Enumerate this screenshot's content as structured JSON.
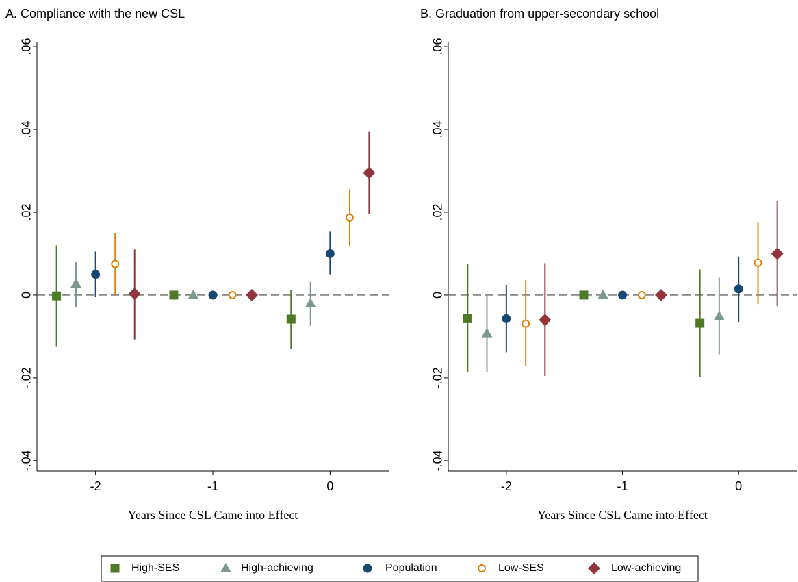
{
  "chart_data": [
    {
      "type": "errorbar",
      "title": "A. Compliance with the new CSL",
      "x_label": "Years Since CSL Came into Effect",
      "xlim": [
        -2.5,
        0.5
      ],
      "xticks": [
        -2,
        -1,
        0
      ],
      "ylim": [
        -0.0425,
        0.061
      ],
      "yticks": [
        {
          "value": -0.04,
          "label": "-.04"
        },
        {
          "value": -0.02,
          "label": "-.02"
        },
        0,
        {
          "value": 0.02,
          "label": ".02"
        },
        {
          "value": 0.04,
          "label": ".04"
        },
        {
          "value": 0.06,
          "label": ".06"
        }
      ],
      "grid": false,
      "reference_line": 0,
      "legend": "bottom",
      "series": [
        {
          "name": "High-SES",
          "color": "#4e7a28",
          "marker": "square",
          "x": [
            -2.333,
            -1.333,
            -0.333
          ],
          "values": [
            -0.0002,
            0,
            -0.0058
          ],
          "lower": [
            -0.0125,
            null,
            -0.013
          ],
          "upper": [
            0.012,
            null,
            0.0013
          ]
        },
        {
          "name": "High-achieving",
          "color": "#7b9a8c",
          "marker": "triangle",
          "x": [
            -2.167,
            -1.167,
            -0.167
          ],
          "values": [
            0.0028,
            0,
            -0.002
          ],
          "lower": [
            -0.003,
            null,
            -0.0075
          ],
          "upper": [
            0.008,
            null,
            0.0032
          ]
        },
        {
          "name": "Population",
          "color": "#1a476f",
          "marker": "circle",
          "x": [
            -2,
            -1,
            0
          ],
          "values": [
            0.005,
            0,
            0.01
          ],
          "lower": [
            -0.0005,
            null,
            0.005
          ],
          "upper": [
            0.0105,
            null,
            0.0153
          ]
        },
        {
          "name": "Low-SES",
          "color": "#e37e00",
          "marker": "hollow-circle",
          "x": [
            -1.833,
            -0.833,
            0.167
          ],
          "values": [
            0.0075,
            0,
            0.0187
          ],
          "lower": [
            0,
            null,
            0.0118
          ],
          "upper": [
            0.015,
            null,
            0.0256
          ]
        },
        {
          "name": "Low-achieving",
          "color": "#90353b",
          "marker": "diamond",
          "x": [
            -1.667,
            -0.667,
            0.333
          ],
          "values": [
            0.0003,
            0,
            0.0295
          ],
          "lower": [
            -0.0107,
            null,
            0.0196
          ],
          "upper": [
            0.011,
            null,
            0.0394
          ]
        }
      ]
    },
    {
      "type": "errorbar",
      "title": "B. Graduation from upper-secondary school",
      "x_label": "Years Since CSL Came into Effect",
      "xlim": [
        -2.5,
        0.5
      ],
      "xticks": [
        -2,
        -1,
        0
      ],
      "ylim": [
        -0.0425,
        0.061
      ],
      "yticks": [
        {
          "value": -0.04,
          "label": "-.04"
        },
        {
          "value": -0.02,
          "label": "-.02"
        },
        0,
        {
          "value": 0.02,
          "label": ".02"
        },
        {
          "value": 0.04,
          "label": ".04"
        },
        {
          "value": 0.06,
          "label": ".06"
        }
      ],
      "grid": false,
      "reference_line": 0,
      "series": [
        {
          "color": "#4e7a28",
          "marker": "square",
          "x": [
            -2.333,
            -1.333,
            -0.333
          ],
          "values": [
            -0.0057,
            0,
            -0.0068
          ],
          "lower": [
            -0.0185,
            null,
            -0.0197
          ],
          "upper": [
            0.0075,
            null,
            0.0062
          ]
        },
        {
          "color": "#7b9a8c",
          "marker": "triangle",
          "x": [
            -2.167,
            -1.167,
            -0.167
          ],
          "values": [
            -0.0092,
            0,
            -0.0051
          ],
          "lower": [
            -0.0187,
            null,
            -0.0143
          ],
          "upper": [
            0.0003,
            null,
            0.0042
          ]
        },
        {
          "color": "#1a476f",
          "marker": "circle",
          "x": [
            -2,
            -1,
            0
          ],
          "values": [
            -0.0057,
            0,
            0.0015
          ],
          "lower": [
            -0.0138,
            null,
            -0.0065
          ],
          "upper": [
            0.0025,
            null,
            0.0093
          ]
        },
        {
          "color": "#e37e00",
          "marker": "hollow-circle",
          "x": [
            -1.833,
            -0.833,
            0.167
          ],
          "values": [
            -0.0069,
            0,
            0.0078
          ],
          "lower": [
            -0.0172,
            null,
            -0.0022
          ],
          "upper": [
            0.0036,
            null,
            0.0176
          ]
        },
        {
          "color": "#90353b",
          "marker": "diamond",
          "x": [
            -1.667,
            -0.667,
            0.333
          ],
          "values": [
            -0.006,
            0,
            0.01
          ],
          "lower": [
            -0.0195,
            null,
            -0.0027
          ],
          "upper": [
            0.0077,
            null,
            0.0228
          ]
        }
      ]
    }
  ]
}
